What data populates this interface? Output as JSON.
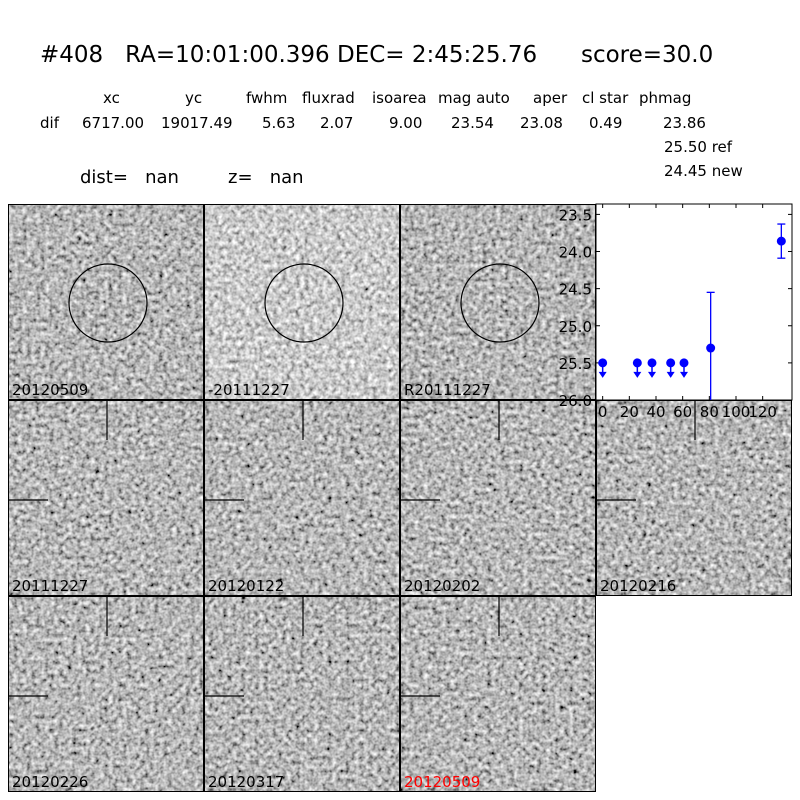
{
  "header": {
    "title": "#408   RA=10:01:00.396 DEC= 2:45:25.76      score=30.0",
    "columns": [
      "xc",
      "yc",
      "fwhm",
      "fluxrad",
      "isoarea",
      "mag auto",
      "aper",
      "cl star",
      "phmag"
    ],
    "row_label": "dif",
    "values": [
      "6717.00",
      "19017.49",
      "5.63",
      "2.07",
      "9.00",
      "23.54",
      "23.08",
      "0.49",
      "23.86"
    ],
    "ref_mag": "25.50 ref",
    "new_mag": "24.45 new",
    "dist": "dist=   nan",
    "z": "z=   nan"
  },
  "stamps": [
    {
      "label": "20120509",
      "marker": "circle",
      "color": "#000000"
    },
    {
      "label": "-20111227",
      "marker": "circle",
      "color": "#000000"
    },
    {
      "label": "R20111227",
      "marker": "circle",
      "color": "#000000"
    },
    {
      "label": "20111227",
      "marker": "crosshair",
      "color": "#000000"
    },
    {
      "label": "20120122",
      "marker": "crosshair",
      "color": "#000000"
    },
    {
      "label": "20120202",
      "marker": "crosshair",
      "color": "#000000"
    },
    {
      "label": "20120216",
      "marker": "crosshair",
      "color": "#000000"
    },
    {
      "label": "20120226",
      "marker": "crosshair",
      "color": "#000000"
    },
    {
      "label": "20120317",
      "marker": "crosshair",
      "color": "#000000"
    },
    {
      "label": "20120509",
      "marker": "crosshair",
      "color": "#ff0000"
    }
  ],
  "chart_data": {
    "type": "scatter",
    "xlim": [
      -5,
      142
    ],
    "ylim": [
      26.0,
      23.36
    ],
    "y_inverted": true,
    "xticks": [
      "0",
      "20",
      "40",
      "60",
      "80",
      "100",
      "120"
    ],
    "yticks": [
      "23.5",
      "24.0",
      "24.5",
      "25.0",
      "25.5",
      "26.0"
    ],
    "color": "#0000ff",
    "points": [
      {
        "x": 0,
        "y": 25.5,
        "upper_limit": true
      },
      {
        "x": 26,
        "y": 25.5,
        "upper_limit": true
      },
      {
        "x": 37,
        "y": 25.5,
        "upper_limit": true
      },
      {
        "x": 51,
        "y": 25.5,
        "upper_limit": true
      },
      {
        "x": 61,
        "y": 25.5,
        "upper_limit": true
      },
      {
        "x": 81,
        "y": 25.3,
        "err": 0.75
      },
      {
        "x": 134,
        "y": 23.86,
        "err": 0.23
      }
    ]
  }
}
